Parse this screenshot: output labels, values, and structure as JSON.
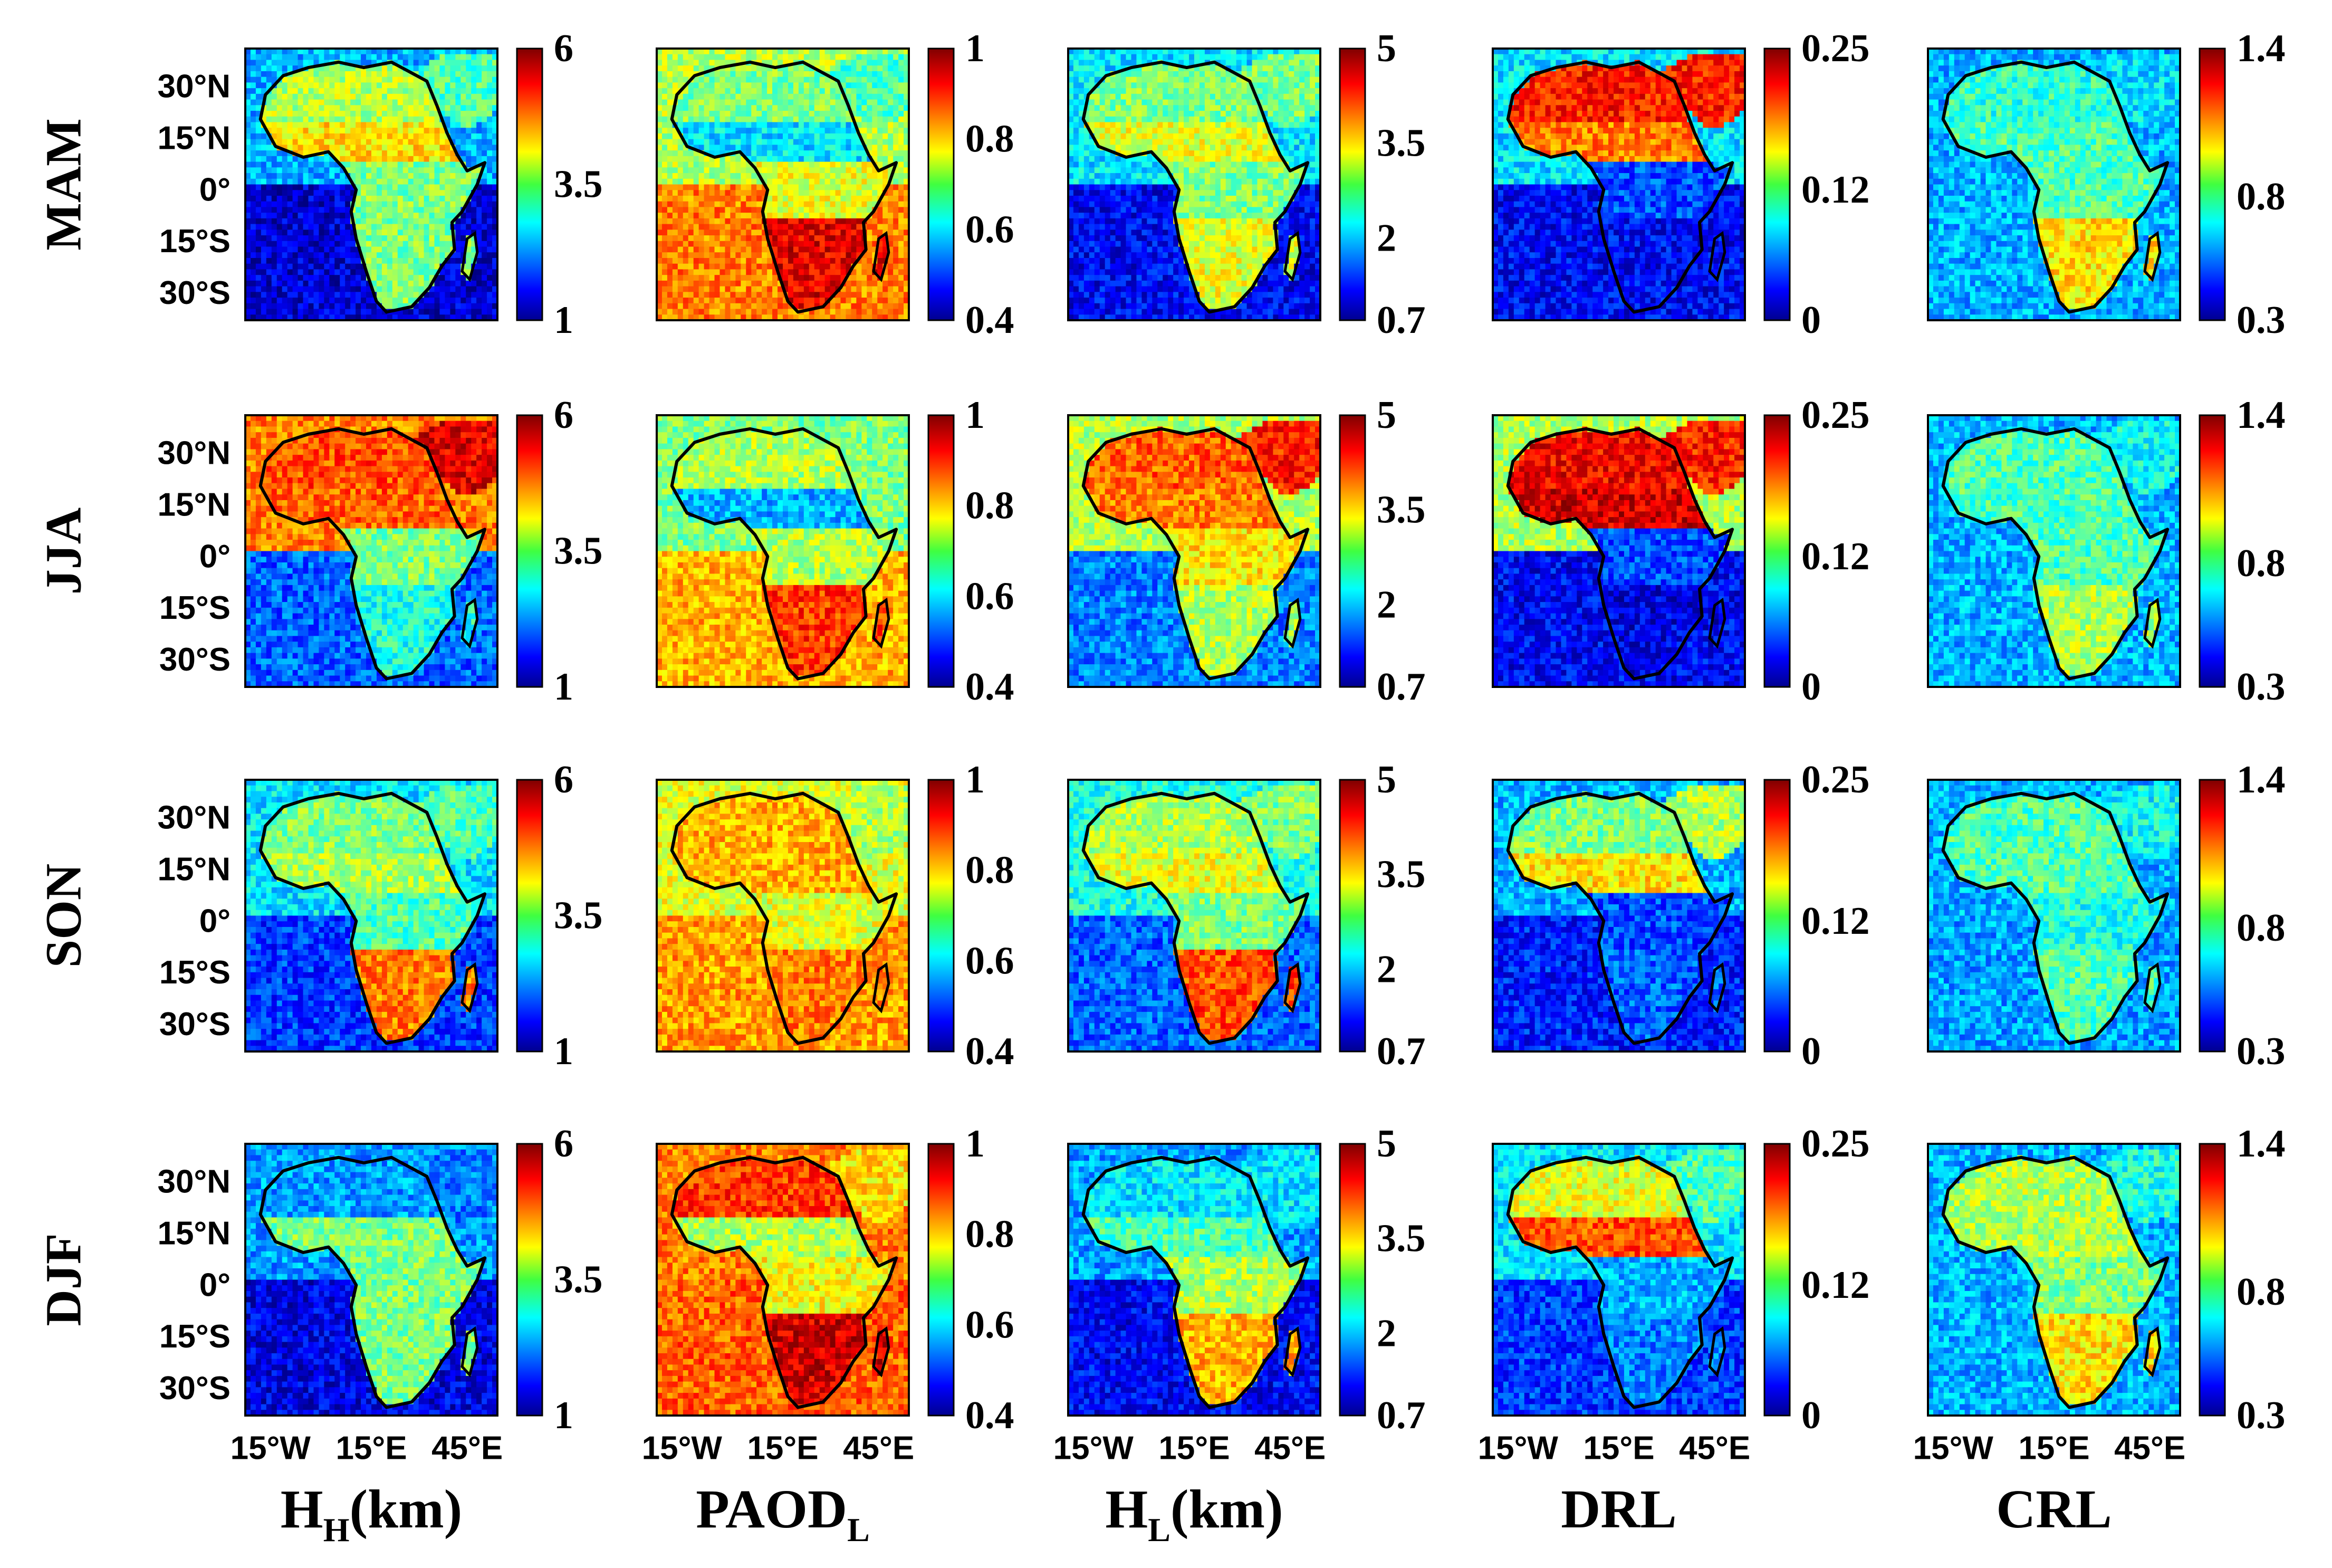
{
  "chart_data": {
    "type": "heatmap",
    "title": "",
    "region": "Africa",
    "rows": [
      "MAM",
      "JJA",
      "SON",
      "DJF"
    ],
    "lat_ticks": [
      "30°N",
      "15°N",
      "0°",
      "15°S",
      "30°S"
    ],
    "lon_ticks": [
      "15°W",
      "15°E",
      "45°E"
    ],
    "grid": false,
    "colormap": "jet",
    "columns": [
      {
        "label_main": "H",
        "label_sub": "H",
        "label_suffix": "(km)",
        "colorbar_ticks": [
          "6",
          "3.5",
          "1"
        ],
        "range": [
          1,
          6
        ]
      },
      {
        "label_main": "PAOD",
        "label_sub": "L",
        "label_suffix": "",
        "colorbar_ticks": [
          "1",
          "0.8",
          "0.6",
          "0.4"
        ],
        "range": [
          0.4,
          1
        ]
      },
      {
        "label_main": "H",
        "label_sub": "L",
        "label_suffix": "(km)",
        "colorbar_ticks": [
          "5",
          "3.5",
          "2",
          "0.7"
        ],
        "range": [
          0.7,
          5
        ]
      },
      {
        "label_main": "DRL",
        "label_sub": "",
        "label_suffix": "",
        "colorbar_ticks": [
          "0.25",
          "0.12",
          "0"
        ],
        "range": [
          0,
          0.25
        ]
      },
      {
        "label_main": "CRL",
        "label_sub": "",
        "label_suffix": "",
        "colorbar_ticks": [
          "1.4",
          "0.8",
          "0.3"
        ],
        "range": [
          0.3,
          1.4
        ]
      }
    ],
    "regional_levels_note": "approximate colour level per region, 0 = low end of colorbar, 1 = high end",
    "regional_levels": {
      "H_H": {
        "MAM": {
          "sahara": 0.55,
          "sahel": 0.65,
          "equatorial": 0.5,
          "southern": 0.5,
          "ocean_north": 0.3,
          "ocean_south": 0.08,
          "arabia": 0.45
        },
        "JJA": {
          "sahara": 0.8,
          "sahel": 0.78,
          "equatorial": 0.5,
          "southern": 0.4,
          "ocean_north": 0.75,
          "ocean_south": 0.22,
          "arabia": 0.9
        },
        "SON": {
          "sahara": 0.5,
          "sahel": 0.55,
          "equatorial": 0.45,
          "southern": 0.75,
          "ocean_north": 0.35,
          "ocean_south": 0.18,
          "arabia": 0.45
        },
        "DJF": {
          "sahara": 0.28,
          "sahel": 0.5,
          "equatorial": 0.5,
          "southern": 0.5,
          "ocean_north": 0.28,
          "ocean_south": 0.1,
          "arabia": 0.25
        }
      },
      "PAOD_L": {
        "MAM": {
          "sahara": 0.5,
          "sahel": 0.35,
          "equatorial": 0.6,
          "southern": 0.9,
          "ocean_north": 0.55,
          "ocean_south": 0.75,
          "arabia": 0.45
        },
        "JJA": {
          "sahara": 0.55,
          "sahel": 0.3,
          "equatorial": 0.55,
          "southern": 0.82,
          "ocean_north": 0.5,
          "ocean_south": 0.7,
          "arabia": 0.5
        },
        "SON": {
          "sahara": 0.7,
          "sahel": 0.7,
          "equatorial": 0.6,
          "southern": 0.75,
          "ocean_north": 0.6,
          "ocean_south": 0.72,
          "arabia": 0.55
        },
        "DJF": {
          "sahara": 0.82,
          "sahel": 0.55,
          "equatorial": 0.62,
          "southern": 0.92,
          "ocean_north": 0.75,
          "ocean_south": 0.78,
          "arabia": 0.65
        }
      },
      "H_L": {
        "MAM": {
          "sahara": 0.5,
          "sahel": 0.6,
          "equatorial": 0.5,
          "southern": 0.6,
          "ocean_north": 0.35,
          "ocean_south": 0.12,
          "arabia": 0.5
        },
        "JJA": {
          "sahara": 0.78,
          "sahel": 0.75,
          "equatorial": 0.65,
          "southern": 0.55,
          "ocean_north": 0.55,
          "ocean_south": 0.25,
          "arabia": 0.85
        },
        "SON": {
          "sahara": 0.55,
          "sahel": 0.6,
          "equatorial": 0.5,
          "southern": 0.8,
          "ocean_north": 0.4,
          "ocean_south": 0.22,
          "arabia": 0.5
        },
        "DJF": {
          "sahara": 0.35,
          "sahel": 0.45,
          "equatorial": 0.55,
          "southern": 0.7,
          "ocean_north": 0.28,
          "ocean_south": 0.12,
          "arabia": 0.35
        }
      },
      "DRL": {
        "MAM": {
          "sahara": 0.85,
          "sahel": 0.75,
          "equatorial": 0.2,
          "southern": 0.12,
          "ocean_north": 0.35,
          "ocean_south": 0.12,
          "arabia": 0.85
        },
        "JJA": {
          "sahara": 0.88,
          "sahel": 0.92,
          "equatorial": 0.2,
          "southern": 0.1,
          "ocean_north": 0.55,
          "ocean_south": 0.12,
          "arabia": 0.85
        },
        "SON": {
          "sahara": 0.5,
          "sahel": 0.65,
          "equatorial": 0.2,
          "southern": 0.22,
          "ocean_north": 0.3,
          "ocean_south": 0.15,
          "arabia": 0.55
        },
        "DJF": {
          "sahara": 0.6,
          "sahel": 0.8,
          "equatorial": 0.3,
          "southern": 0.25,
          "ocean_north": 0.35,
          "ocean_south": 0.18,
          "arabia": 0.45
        }
      },
      "CRL": {
        "MAM": {
          "sahara": 0.42,
          "sahel": 0.45,
          "equatorial": 0.45,
          "southern": 0.65,
          "ocean_north": 0.3,
          "ocean_south": 0.3,
          "arabia": 0.35
        },
        "JJA": {
          "sahara": 0.45,
          "sahel": 0.45,
          "equatorial": 0.45,
          "southern": 0.55,
          "ocean_north": 0.3,
          "ocean_south": 0.3,
          "arabia": 0.38
        },
        "SON": {
          "sahara": 0.45,
          "sahel": 0.45,
          "equatorial": 0.4,
          "southern": 0.45,
          "ocean_north": 0.3,
          "ocean_south": 0.28,
          "arabia": 0.38
        },
        "DJF": {
          "sahara": 0.55,
          "sahel": 0.55,
          "equatorial": 0.5,
          "southern": 0.65,
          "ocean_north": 0.3,
          "ocean_south": 0.3,
          "arabia": 0.4
        }
      }
    }
  }
}
